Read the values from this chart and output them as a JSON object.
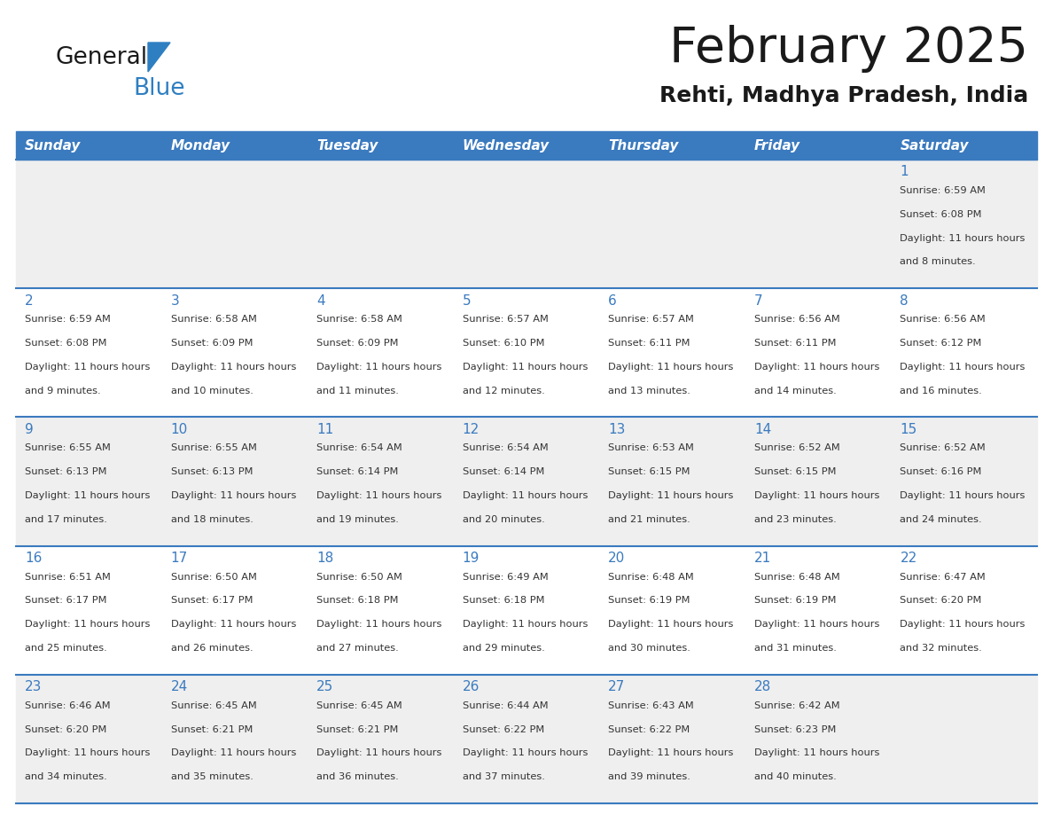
{
  "title": "February 2025",
  "subtitle": "Rehti, Madhya Pradesh, India",
  "header_bg": "#3a7abf",
  "header_text_color": "#ffffff",
  "day_names": [
    "Sunday",
    "Monday",
    "Tuesday",
    "Wednesday",
    "Thursday",
    "Friday",
    "Saturday"
  ],
  "cell_bg_even": "#efefef",
  "cell_bg_odd": "#ffffff",
  "separator_color": "#3a7abf",
  "day_num_color": "#3a7abf",
  "logo_color_general": "#1a1a1a",
  "logo_color_blue": "#2e7fc1",
  "calendar": [
    [
      null,
      null,
      null,
      null,
      null,
      null,
      {
        "day": 1,
        "sunrise": "6:59 AM",
        "sunset": "6:08 PM",
        "daylight": "11 hours and 8 minutes"
      }
    ],
    [
      {
        "day": 2,
        "sunrise": "6:59 AM",
        "sunset": "6:08 PM",
        "daylight": "11 hours and 9 minutes"
      },
      {
        "day": 3,
        "sunrise": "6:58 AM",
        "sunset": "6:09 PM",
        "daylight": "11 hours and 10 minutes"
      },
      {
        "day": 4,
        "sunrise": "6:58 AM",
        "sunset": "6:09 PM",
        "daylight": "11 hours and 11 minutes"
      },
      {
        "day": 5,
        "sunrise": "6:57 AM",
        "sunset": "6:10 PM",
        "daylight": "11 hours and 12 minutes"
      },
      {
        "day": 6,
        "sunrise": "6:57 AM",
        "sunset": "6:11 PM",
        "daylight": "11 hours and 13 minutes"
      },
      {
        "day": 7,
        "sunrise": "6:56 AM",
        "sunset": "6:11 PM",
        "daylight": "11 hours and 14 minutes"
      },
      {
        "day": 8,
        "sunrise": "6:56 AM",
        "sunset": "6:12 PM",
        "daylight": "11 hours and 16 minutes"
      }
    ],
    [
      {
        "day": 9,
        "sunrise": "6:55 AM",
        "sunset": "6:13 PM",
        "daylight": "11 hours and 17 minutes"
      },
      {
        "day": 10,
        "sunrise": "6:55 AM",
        "sunset": "6:13 PM",
        "daylight": "11 hours and 18 minutes"
      },
      {
        "day": 11,
        "sunrise": "6:54 AM",
        "sunset": "6:14 PM",
        "daylight": "11 hours and 19 minutes"
      },
      {
        "day": 12,
        "sunrise": "6:54 AM",
        "sunset": "6:14 PM",
        "daylight": "11 hours and 20 minutes"
      },
      {
        "day": 13,
        "sunrise": "6:53 AM",
        "sunset": "6:15 PM",
        "daylight": "11 hours and 21 minutes"
      },
      {
        "day": 14,
        "sunrise": "6:52 AM",
        "sunset": "6:15 PM",
        "daylight": "11 hours and 23 minutes"
      },
      {
        "day": 15,
        "sunrise": "6:52 AM",
        "sunset": "6:16 PM",
        "daylight": "11 hours and 24 minutes"
      }
    ],
    [
      {
        "day": 16,
        "sunrise": "6:51 AM",
        "sunset": "6:17 PM",
        "daylight": "11 hours and 25 minutes"
      },
      {
        "day": 17,
        "sunrise": "6:50 AM",
        "sunset": "6:17 PM",
        "daylight": "11 hours and 26 minutes"
      },
      {
        "day": 18,
        "sunrise": "6:50 AM",
        "sunset": "6:18 PM",
        "daylight": "11 hours and 27 minutes"
      },
      {
        "day": 19,
        "sunrise": "6:49 AM",
        "sunset": "6:18 PM",
        "daylight": "11 hours and 29 minutes"
      },
      {
        "day": 20,
        "sunrise": "6:48 AM",
        "sunset": "6:19 PM",
        "daylight": "11 hours and 30 minutes"
      },
      {
        "day": 21,
        "sunrise": "6:48 AM",
        "sunset": "6:19 PM",
        "daylight": "11 hours and 31 minutes"
      },
      {
        "day": 22,
        "sunrise": "6:47 AM",
        "sunset": "6:20 PM",
        "daylight": "11 hours and 32 minutes"
      }
    ],
    [
      {
        "day": 23,
        "sunrise": "6:46 AM",
        "sunset": "6:20 PM",
        "daylight": "11 hours and 34 minutes"
      },
      {
        "day": 24,
        "sunrise": "6:45 AM",
        "sunset": "6:21 PM",
        "daylight": "11 hours and 35 minutes"
      },
      {
        "day": 25,
        "sunrise": "6:45 AM",
        "sunset": "6:21 PM",
        "daylight": "11 hours and 36 minutes"
      },
      {
        "day": 26,
        "sunrise": "6:44 AM",
        "sunset": "6:22 PM",
        "daylight": "11 hours and 37 minutes"
      },
      {
        "day": 27,
        "sunrise": "6:43 AM",
        "sunset": "6:22 PM",
        "daylight": "11 hours and 39 minutes"
      },
      {
        "day": 28,
        "sunrise": "6:42 AM",
        "sunset": "6:23 PM",
        "daylight": "11 hours and 40 minutes"
      },
      null
    ]
  ]
}
